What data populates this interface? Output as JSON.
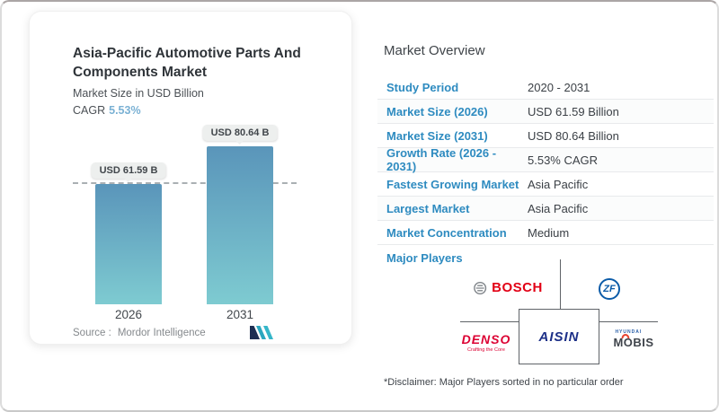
{
  "chart_card": {
    "title": "Asia-Pacific Automotive Parts And Components Market",
    "subtitle": "Market Size in USD Billion",
    "cagr_label": "CAGR",
    "cagr_value": "5.53%",
    "source_label": "Source :",
    "source_value": "Mordor Intelligence"
  },
  "chart_data": {
    "type": "bar",
    "title": "Asia-Pacific Automotive Parts And Components Market",
    "ylabel": "Market Size in USD Billion",
    "categories": [
      "2026",
      "2031"
    ],
    "values": [
      61.59,
      80.64
    ],
    "value_labels": [
      "USD 61.59 B",
      "USD 80.64 B"
    ],
    "unit": "USD Billion",
    "bar_gradient": [
      "#5a95ba",
      "#7ecbd1"
    ],
    "dashed_reference_line_at": 61.59,
    "legend": "none",
    "grid": "off"
  },
  "overview": {
    "title": "Market Overview",
    "rows": [
      {
        "label": "Study Period",
        "value": "2020 - 2031"
      },
      {
        "label": "Market Size (2026)",
        "value": "USD 61.59 Billion"
      },
      {
        "label": "Market Size (2031)",
        "value": "USD 80.64 Billion"
      },
      {
        "label": "Growth Rate (2026 - 2031)",
        "value": "5.53% CAGR"
      },
      {
        "label": "Fastest Growing Market",
        "value": "Asia Pacific"
      },
      {
        "label": "Largest Market",
        "value": "Asia Pacific"
      },
      {
        "label": "Market Concentration",
        "value": "Medium"
      }
    ],
    "major_players_label": "Major Players",
    "players": [
      {
        "name": "Bosch",
        "text": "BOSCH"
      },
      {
        "name": "ZF",
        "text": "ZF"
      },
      {
        "name": "Denso",
        "text": "DENSO",
        "tagline": "Crafting the Core"
      },
      {
        "name": "Aisin",
        "text": "AISIN"
      },
      {
        "name": "Hyundai Mobis",
        "text_top": "HYUNDAI",
        "text": "MOBIS"
      }
    ],
    "disclaimer": "*Disclaimer: Major Players sorted in no particular order"
  },
  "colors": {
    "accent_blue": "#2e8bc0",
    "cagr_blue": "#7ab1d4",
    "bar_top": "#5a95ba",
    "bar_bottom": "#7ecbd1",
    "bosch_red": "#e20015",
    "zf_blue": "#0b5ba8",
    "denso_red": "#dc0032",
    "aisin_navy": "#1c2f87"
  }
}
